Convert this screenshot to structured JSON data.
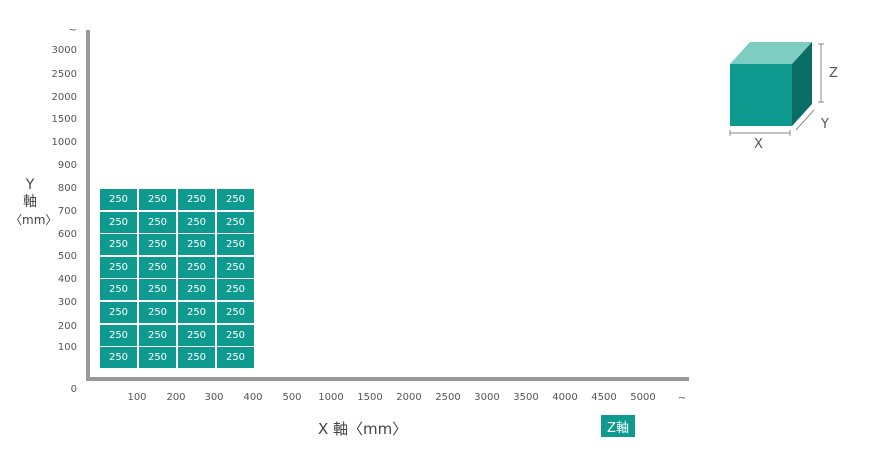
{
  "chart_data": {
    "type": "heatmap",
    "x_axis": {
      "label": "X 軸〈mm〉",
      "ticks": [
        "100",
        "200",
        "300",
        "400",
        "500",
        "1000",
        "1500",
        "2000",
        "2500",
        "3000",
        "3500",
        "4000",
        "4500",
        "5000",
        "~"
      ]
    },
    "y_axis": {
      "label_lines": [
        "Y",
        "軸",
        "〈mm〉"
      ],
      "ticks": [
        "0",
        "100",
        "200",
        "300",
        "400",
        "500",
        "600",
        "700",
        "800",
        "900",
        "1000",
        "1500",
        "2000",
        "2500",
        "3000",
        "~"
      ]
    },
    "columns": [
      "100",
      "200",
      "300",
      "400"
    ],
    "rows": [
      "800",
      "700",
      "600",
      "500",
      "400",
      "300",
      "200",
      "100"
    ],
    "cell_values": [
      [
        "250",
        "250",
        "250",
        "250"
      ],
      [
        "250",
        "250",
        "250",
        "250"
      ],
      [
        "250",
        "250",
        "250",
        "250"
      ],
      [
        "250",
        "250",
        "250",
        "250"
      ],
      [
        "250",
        "250",
        "250",
        "250"
      ],
      [
        "250",
        "250",
        "250",
        "250"
      ],
      [
        "250",
        "250",
        "250",
        "250"
      ],
      [
        "250",
        "250",
        "250",
        "250"
      ]
    ],
    "z_axis_badge": "Z軸",
    "cube_labels": {
      "x": "X",
      "y": "Y",
      "z": "Z"
    },
    "colors": {
      "cell": "#0f9a8f",
      "axis": "#999999",
      "cube_front": "#0f9a8f",
      "cube_top": "#7ecdc2",
      "cube_side": "#0a6e66"
    }
  }
}
